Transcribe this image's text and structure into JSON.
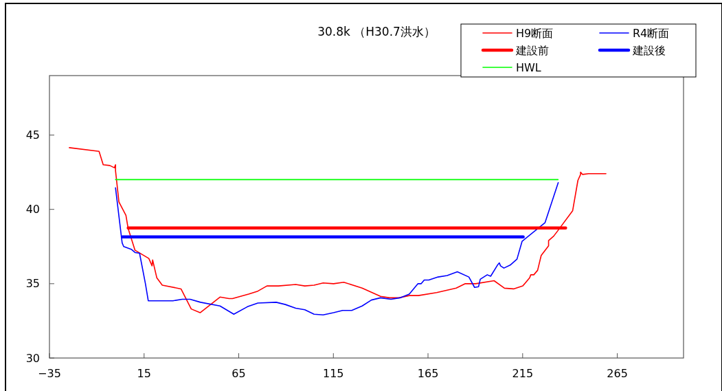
{
  "chart_data": {
    "type": "line",
    "title": "30.8k （H30.7洪水）",
    "xlim": [
      -35,
      300
    ],
    "xticks": [
      -35,
      15,
      65,
      115,
      165,
      215,
      265
    ],
    "ylim": [
      30,
      49
    ],
    "yticks": [
      30,
      35,
      40,
      45
    ],
    "grid": false,
    "legend": "top right",
    "marker": "none",
    "line_style": "solid",
    "series": [
      {
        "name": "H9断面",
        "color": "#ff0000",
        "x": [
          -24.5,
          -8.8,
          -6.6,
          -3.1,
          -0.7,
          -0.1,
          -0.1,
          1.7,
          5.4,
          6.6,
          10.2,
          17.5,
          19.2,
          19.5,
          21.7,
          24.6,
          34.5,
          39.9,
          44.6,
          55.1,
          59.9,
          61.7,
          70.2,
          75.1,
          79.9,
          86,
          95.1,
          99.9,
          104.8,
          109.6,
          115.1,
          120.5,
          130.2,
          139.9,
          144.7,
          149.6,
          155.1,
          159.9,
          169.6,
          179.9,
          184.7,
          190.2,
          199.9,
          205.4,
          210.2,
          215.1,
          218.7,
          219.3,
          220.9,
          222.9,
          224.8,
          228.7,
          228.7,
          231.4,
          233.2,
          241.4,
          244.2,
          245.6,
          245.6,
          246.6,
          249.8,
          259
        ],
        "values": [
          44.15,
          43.9,
          43,
          42.95,
          42.8,
          43,
          42.6,
          40.5,
          39.6,
          38.7,
          37.25,
          36.7,
          36.2,
          36.6,
          35.4,
          34.9,
          34.65,
          33.3,
          33.05,
          34.1,
          34,
          34,
          34.3,
          34.5,
          34.85,
          34.85,
          34.95,
          34.85,
          34.9,
          35.05,
          35,
          35.1,
          34.7,
          34.15,
          34.05,
          34.05,
          34.2,
          34.2,
          34.4,
          34.7,
          35,
          35,
          35.2,
          34.7,
          34.65,
          34.85,
          35.4,
          35.6,
          35.6,
          35.9,
          36.9,
          37.55,
          37.9,
          38.2,
          38.5,
          39.9,
          41.95,
          42.35,
          42.5,
          42.35,
          42.4,
          42.4
        ]
      },
      {
        "name": "R4断面",
        "color": "#0000ff",
        "x": [
          -0.1,
          3.4,
          4.2,
          8.4,
          10.2,
          12.6,
          15.7,
          17.2,
          30.2,
          35.1,
          39.3,
          44.8,
          55.1,
          62.4,
          69.6,
          75.1,
          84.8,
          89.6,
          95.1,
          99.9,
          104.8,
          109.6,
          115.1,
          119.9,
          124.7,
          130.2,
          135.1,
          139.9,
          145.4,
          150.2,
          155.1,
          159.7,
          161.4,
          163,
          165.4,
          170.3,
          175.1,
          180.5,
          186.6,
          189.6,
          191.7,
          192.6,
          196.3,
          198.1,
          201.7,
          202.7,
          203.3,
          205.1,
          208.4,
          212,
          214.7,
          226.8,
          233.8
        ],
        "values": [
          41.45,
          37.75,
          37.5,
          37.3,
          37.1,
          37.05,
          35,
          33.85,
          33.85,
          33.95,
          33.95,
          33.75,
          33.5,
          32.95,
          33.45,
          33.7,
          33.75,
          33.6,
          33.35,
          33.25,
          32.95,
          32.9,
          33.05,
          33.2,
          33.2,
          33.5,
          33.9,
          34.05,
          33.95,
          34.05,
          34.3,
          35,
          35,
          35.25,
          35.25,
          35.45,
          35.55,
          35.8,
          35.45,
          34.75,
          34.8,
          35.3,
          35.6,
          35.5,
          36.25,
          36.4,
          36.2,
          36.05,
          36.25,
          36.65,
          37.85,
          39.1,
          41.8
        ]
      },
      {
        "name": "建設前",
        "color": "#ff0000",
        "x": [
          6.6,
          237.7
        ],
        "values": [
          38.75,
          38.75
        ]
      },
      {
        "name": "建設後",
        "color": "#0000ff",
        "x": [
          3.5,
          215.3
        ],
        "values": [
          38.15,
          38.15
        ]
      },
      {
        "name": "HWL",
        "color": "#00ff00",
        "x": [
          -0.1,
          233.7
        ],
        "values": [
          42,
          42
        ]
      }
    ]
  }
}
